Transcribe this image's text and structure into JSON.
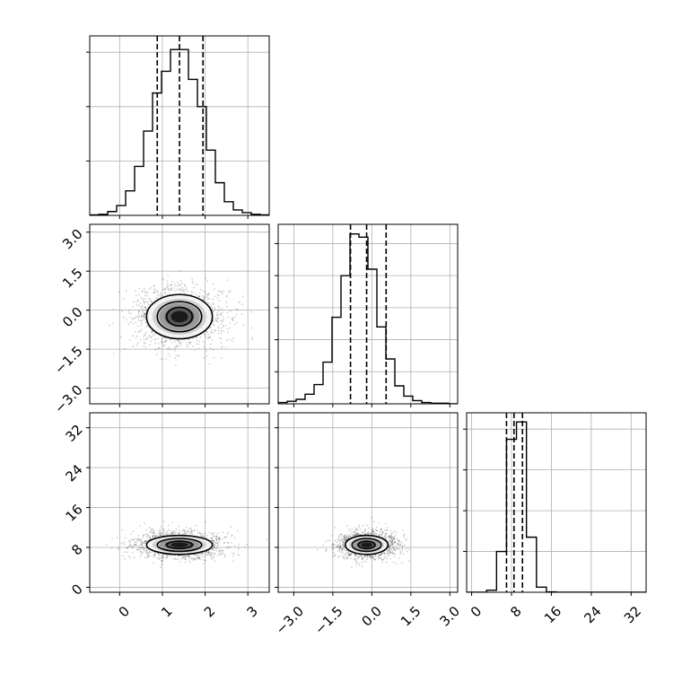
{
  "chart_data": {
    "type": "corner",
    "grid": true,
    "colors": {
      "line": "#000000",
      "grid": "#b0b0b0",
      "scatter": "#000000"
    },
    "params": [
      {
        "ticks": [
          0,
          1,
          2,
          3
        ],
        "tick_labels": [
          "0",
          "1",
          "2",
          "3"
        ],
        "range": [
          -0.7,
          3.5
        ]
      },
      {
        "ticks": [
          -3.0,
          -1.5,
          0.0,
          1.5,
          3.0
        ],
        "tick_labels": [
          "−3.0",
          "−1.5",
          "0.0",
          "1.5",
          "3.0"
        ],
        "range": [
          -3.6,
          3.3
        ]
      },
      {
        "ticks": [
          0,
          8,
          16,
          24,
          32
        ],
        "tick_labels": [
          "0",
          "8",
          "16",
          "24",
          "32"
        ],
        "range": [
          -1.0,
          35.0
        ]
      }
    ],
    "histograms": [
      {
        "bin_edges": [
          -0.7,
          -0.49,
          -0.28,
          -0.07,
          0.14,
          0.35,
          0.56,
          0.77,
          0.98,
          1.19,
          1.4,
          1.61,
          1.82,
          2.03,
          2.24,
          2.45,
          2.66,
          2.87,
          3.08,
          3.29,
          3.5
        ],
        "counts": [
          1,
          2,
          7,
          18,
          45,
          90,
          155,
          225,
          265,
          305,
          305,
          250,
          200,
          120,
          60,
          25,
          10,
          5,
          2,
          1
        ],
        "quantiles": [
          0.88,
          1.4,
          1.95
        ],
        "ylim": [
          0,
          330
        ],
        "yticks": [
          100,
          200,
          300
        ]
      },
      {
        "bin_edges": [
          -3.6,
          -3.255,
          -2.91,
          -2.565,
          -2.22,
          -1.875,
          -1.53,
          -1.185,
          -0.84,
          -0.495,
          -0.15,
          0.195,
          0.54,
          0.885,
          1.23,
          1.575,
          1.92,
          2.265,
          2.61,
          2.955,
          3.3
        ],
        "counts": [
          2,
          4,
          7,
          15,
          30,
          65,
          135,
          200,
          265,
          260,
          210,
          120,
          70,
          28,
          12,
          5,
          2,
          1,
          1,
          0
        ],
        "quantiles": [
          -0.82,
          -0.2,
          0.55
        ],
        "ylim": [
          0,
          280
        ],
        "yticks": [
          50,
          100,
          150,
          200,
          250
        ]
      },
      {
        "bin_edges": [
          -1.0,
          1.0,
          3.0,
          5.0,
          7.0,
          9.0,
          11.0,
          13.0,
          15.0,
          17.0,
          19.0,
          21.0,
          23.0,
          25.0,
          27.0,
          29.0,
          31.0,
          33.0,
          35.0
        ],
        "counts": [
          0,
          0,
          10,
          200,
          750,
          835,
          270,
          25,
          2,
          0,
          0,
          0,
          0,
          0,
          0,
          0,
          0,
          0
        ],
        "quantiles": [
          7.0,
          8.5,
          10.2
        ],
        "ylim": [
          0,
          880
        ],
        "yticks": [
          200,
          400,
          600,
          800
        ]
      }
    ],
    "joints": [
      {
        "x": 0,
        "y": 1,
        "mean": [
          1.4,
          -0.25
        ],
        "sd": [
          0.52,
          0.55
        ],
        "levels": [
          [
            0.77,
            0.85
          ],
          [
            0.52,
            0.58
          ],
          [
            0.3,
            0.36
          ]
        ],
        "seed": 7
      },
      {
        "x": 0,
        "y": 2,
        "mean": [
          1.4,
          8.5
        ],
        "sd": [
          0.52,
          1.3
        ],
        "levels": [
          [
            0.77,
            1.9
          ],
          [
            0.52,
            1.3
          ],
          [
            0.3,
            0.75
          ]
        ],
        "seed": 13
      },
      {
        "x": 1,
        "y": 2,
        "mean": [
          -0.2,
          8.5
        ],
        "sd": [
          0.55,
          1.3
        ],
        "levels": [
          [
            0.82,
            1.9
          ],
          [
            0.56,
            1.3
          ],
          [
            0.32,
            0.75
          ]
        ],
        "seed": 29
      }
    ]
  }
}
